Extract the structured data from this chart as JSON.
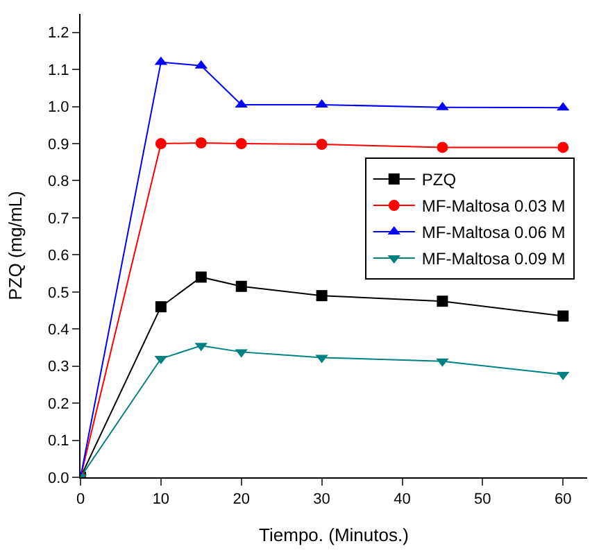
{
  "chart_data": {
    "type": "line",
    "xlabel": "Tiempo. (Minutos.)",
    "ylabel": "PZQ (mg/mL)",
    "x": [
      0,
      10,
      15,
      20,
      30,
      45,
      60
    ],
    "series": [
      {
        "name": "PZQ",
        "color": "#000000",
        "marker": "square",
        "values": [
          0,
          0.46,
          0.54,
          0.515,
          0.49,
          0.475,
          0.435
        ]
      },
      {
        "name": "MF-Maltosa 0.03 M",
        "color": "#ff0000",
        "marker": "circle",
        "values": [
          0,
          0.9,
          0.902,
          0.9,
          0.898,
          0.89,
          0.89
        ]
      },
      {
        "name": "MF-Maltosa 0.06 M",
        "color": "#0000ff",
        "marker": "triangle",
        "values": [
          0,
          1.12,
          1.11,
          1.005,
          1.005,
          0.998,
          0.997
        ]
      },
      {
        "name": "MF-Maltosa 0.09 M",
        "color": "#008080",
        "marker": "triangle-down",
        "values": [
          0,
          0.32,
          0.355,
          0.338,
          0.323,
          0.313,
          0.277
        ]
      }
    ],
    "xlim": [
      0,
      63
    ],
    "ylim": [
      0,
      1.25
    ],
    "xticks": [
      0,
      10,
      20,
      30,
      40,
      50,
      60
    ],
    "yticks": [
      {
        "value": 0,
        "label": "0.0"
      },
      0.1,
      0.2,
      0.3,
      0.4,
      0.5,
      0.6,
      0.7,
      0.8,
      0.9,
      {
        "value": 1,
        "label": "1.0"
      },
      1.1,
      1.2
    ],
    "legend": "right",
    "line_style": "solid"
  }
}
